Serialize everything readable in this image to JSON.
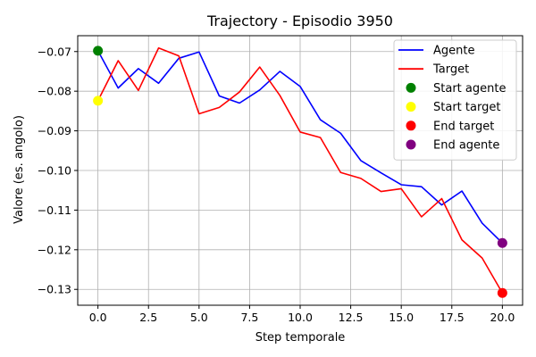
{
  "chart_data": {
    "type": "line",
    "title": "Trajectory - Episodio 3950",
    "xlabel": "Step temporale",
    "ylabel": "Valore (es. angolo)",
    "xlim": [
      -1,
      21
    ],
    "ylim": [
      -0.134,
      -0.066
    ],
    "xticks": [
      0,
      2.5,
      5,
      7.5,
      10,
      12.5,
      15,
      17.5,
      20
    ],
    "xtick_labels": [
      "0.0",
      "2.5",
      "5.0",
      "7.5",
      "10.0",
      "12.5",
      "15.0",
      "17.5",
      "20.0"
    ],
    "yticks": [
      -0.07,
      -0.08,
      -0.09,
      -0.1,
      -0.11,
      -0.12,
      -0.13
    ],
    "ytick_labels": [
      "−0.07",
      "−0.08",
      "−0.09",
      "−0.10",
      "−0.11",
      "−0.12",
      "−0.13"
    ],
    "grid": true,
    "legend_position": "top-right",
    "x": [
      0,
      1,
      2,
      3,
      4,
      5,
      6,
      7,
      8,
      9,
      10,
      11,
      12,
      13,
      14,
      15,
      16,
      17,
      18,
      19,
      20
    ],
    "series": [
      {
        "name": "Agente",
        "color": "#0000ff",
        "values": [
          -0.0698,
          -0.0792,
          -0.0743,
          -0.078,
          -0.0717,
          -0.0701,
          -0.0812,
          -0.083,
          -0.0797,
          -0.075,
          -0.0788,
          -0.0872,
          -0.0906,
          -0.0975,
          -0.1006,
          -0.1036,
          -0.1041,
          -0.1087,
          -0.1052,
          -0.1133,
          -0.1183
        ]
      },
      {
        "name": "Target",
        "color": "#ff0000",
        "values": [
          -0.0824,
          -0.0723,
          -0.0798,
          -0.0691,
          -0.0711,
          -0.0857,
          -0.0841,
          -0.0802,
          -0.0739,
          -0.0811,
          -0.0903,
          -0.0917,
          -0.1005,
          -0.102,
          -0.1053,
          -0.1046,
          -0.1117,
          -0.1071,
          -0.1175,
          -0.1221,
          -0.1309
        ]
      }
    ],
    "markers": [
      {
        "name": "Start agente",
        "color": "#008000",
        "x": 0,
        "y": -0.0698
      },
      {
        "name": "Start target",
        "color": "#ffff00",
        "x": 0,
        "y": -0.0824
      },
      {
        "name": "End target",
        "color": "#ff0000",
        "x": 20,
        "y": -0.1309
      },
      {
        "name": "End agente",
        "color": "#800080",
        "x": 20,
        "y": -0.1183
      }
    ]
  }
}
